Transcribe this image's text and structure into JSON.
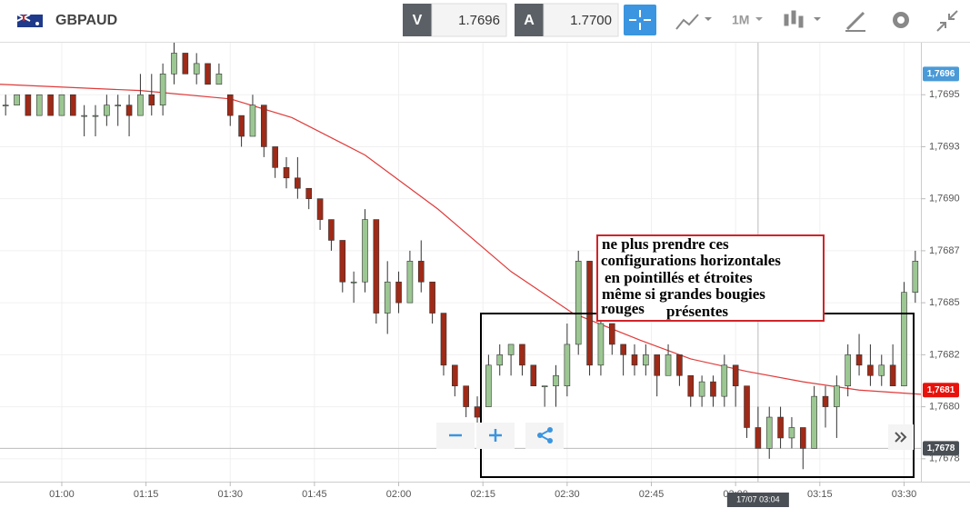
{
  "header": {
    "symbol": "GBPAUD",
    "bid_label": "V",
    "bid": "1.7696",
    "ask_label": "A",
    "ask": "1.7700",
    "timeframe": "1M"
  },
  "annotation": {
    "lines": [
      "ne plus prendre ces",
      "configurations horizontales",
      "en pointillés et étroites",
      "même si grandes bougies",
      "rouges",
      "présentes"
    ]
  },
  "chart_data": {
    "type": "candlestick",
    "x": [
      "00:50",
      "00:52",
      "00:54",
      "00:56",
      "00:58",
      "01:00",
      "01:02",
      "01:04",
      "01:06",
      "01:08",
      "01:10",
      "01:12",
      "01:14",
      "01:16",
      "01:18",
      "01:20",
      "01:22",
      "01:24",
      "01:26",
      "01:28",
      "01:30",
      "01:32",
      "01:34",
      "01:36",
      "01:38",
      "01:40",
      "01:42",
      "01:44",
      "01:46",
      "01:48",
      "01:50",
      "01:52",
      "01:54",
      "01:56",
      "01:58",
      "02:00",
      "02:02",
      "02:04",
      "02:06",
      "02:08",
      "02:10",
      "02:12",
      "02:14",
      "02:16",
      "02:18",
      "02:20",
      "02:22",
      "02:24",
      "02:26",
      "02:28",
      "02:30",
      "02:32",
      "02:34",
      "02:36",
      "02:38",
      "02:40",
      "02:42",
      "02:44",
      "02:46",
      "02:48",
      "02:50",
      "02:52",
      "02:54",
      "02:56",
      "02:58",
      "03:00",
      "03:02",
      "03:04",
      "03:06",
      "03:08",
      "03:10",
      "03:12",
      "03:14",
      "03:16",
      "03:18",
      "03:20",
      "03:22",
      "03:24",
      "03:26",
      "03:28",
      "03:30",
      "03:32"
    ],
    "open": [
      1.76945,
      1.76945,
      1.7695,
      1.7694,
      1.7695,
      1.7694,
      1.7695,
      1.7694,
      1.7694,
      1.7694,
      1.76945,
      1.76945,
      1.7694,
      1.7695,
      1.76945,
      1.7696,
      1.7697,
      1.7696,
      1.76965,
      1.76955,
      1.7695,
      1.7694,
      1.7693,
      1.76945,
      1.76925,
      1.76915,
      1.7691,
      1.76905,
      1.769,
      1.7689,
      1.7688,
      1.7686,
      1.7686,
      1.7689,
      1.76845,
      1.7686,
      1.7685,
      1.7687,
      1.7686,
      1.76845,
      1.7682,
      1.7681,
      1.768,
      1.768,
      1.7682,
      1.76825,
      1.7683,
      1.7682,
      1.7681,
      1.7681,
      1.7681,
      1.7683,
      1.7687,
      1.7682,
      1.7684,
      1.7683,
      1.76825,
      1.7682,
      1.76825,
      1.76815,
      1.76825,
      1.76815,
      1.76805,
      1.76812,
      1.76805,
      1.7682,
      1.7681,
      1.7679,
      1.7678,
      1.76795,
      1.76785,
      1.7679,
      1.7678,
      1.76805,
      1.768,
      1.7681,
      1.76825,
      1.7682,
      1.76815,
      1.7682,
      1.7681,
      1.76855
    ],
    "high": [
      1.7695,
      1.7695,
      1.7695,
      1.7695,
      1.7695,
      1.7695,
      1.7695,
      1.76945,
      1.76945,
      1.7695,
      1.7695,
      1.7695,
      1.7696,
      1.7696,
      1.76965,
      1.76975,
      1.7697,
      1.7697,
      1.76965,
      1.76965,
      1.7695,
      1.7694,
      1.7695,
      1.76945,
      1.76925,
      1.7692,
      1.7692,
      1.76905,
      1.769,
      1.7689,
      1.7688,
      1.76865,
      1.76895,
      1.7689,
      1.7687,
      1.76865,
      1.76875,
      1.7688,
      1.7686,
      1.76845,
      1.7682,
      1.7681,
      1.76805,
      1.76825,
      1.7683,
      1.7683,
      1.7683,
      1.7682,
      1.7681,
      1.7682,
      1.7684,
      1.76875,
      1.7687,
      1.76845,
      1.7684,
      1.7683,
      1.7683,
      1.7683,
      1.76825,
      1.7683,
      1.76825,
      1.76815,
      1.76815,
      1.76815,
      1.76825,
      1.7682,
      1.7681,
      1.768,
      1.768,
      1.768,
      1.76795,
      1.7679,
      1.7681,
      1.7681,
      1.76815,
      1.7683,
      1.76835,
      1.7683,
      1.76825,
      1.7683,
      1.7686,
      1.76875
    ],
    "low": [
      1.7694,
      1.76945,
      1.7694,
      1.7694,
      1.7694,
      1.7694,
      1.7694,
      1.7693,
      1.7693,
      1.76935,
      1.76935,
      1.7693,
      1.7694,
      1.7694,
      1.7694,
      1.76955,
      1.7696,
      1.76955,
      1.76955,
      1.76955,
      1.76935,
      1.76925,
      1.7693,
      1.7692,
      1.7691,
      1.76905,
      1.769,
      1.76895,
      1.76885,
      1.76875,
      1.76855,
      1.7685,
      1.76855,
      1.7684,
      1.76835,
      1.76845,
      1.7685,
      1.76855,
      1.7684,
      1.76815,
      1.76805,
      1.76795,
      1.7679,
      1.768,
      1.76815,
      1.76815,
      1.76815,
      1.7681,
      1.768,
      1.768,
      1.76805,
      1.76825,
      1.76815,
      1.76815,
      1.76825,
      1.76815,
      1.76815,
      1.76815,
      1.76805,
      1.76815,
      1.7681,
      1.768,
      1.768,
      1.768,
      1.768,
      1.768,
      1.76785,
      1.7678,
      1.76775,
      1.7678,
      1.7678,
      1.7677,
      1.7678,
      1.7679,
      1.76785,
      1.76805,
      1.76815,
      1.7681,
      1.7681,
      1.7681,
      1.7681,
      1.7685
    ],
    "close": [
      1.76945,
      1.7695,
      1.7694,
      1.7695,
      1.7694,
      1.7695,
      1.7694,
      1.7694,
      1.7694,
      1.76945,
      1.76945,
      1.7694,
      1.7695,
      1.76945,
      1.7696,
      1.7697,
      1.7696,
      1.76965,
      1.76955,
      1.7696,
      1.7694,
      1.7693,
      1.76945,
      1.76925,
      1.76915,
      1.7691,
      1.76905,
      1.769,
      1.7689,
      1.7688,
      1.7686,
      1.7686,
      1.7689,
      1.76845,
      1.7686,
      1.7685,
      1.7687,
      1.7686,
      1.76845,
      1.7682,
      1.7681,
      1.768,
      1.76795,
      1.7682,
      1.76825,
      1.7683,
      1.7682,
      1.7681,
      1.7681,
      1.76815,
      1.7683,
      1.7687,
      1.7682,
      1.7684,
      1.7683,
      1.76825,
      1.7682,
      1.76825,
      1.76815,
      1.76825,
      1.76815,
      1.76805,
      1.76812,
      1.76805,
      1.7682,
      1.7681,
      1.7679,
      1.7678,
      1.76795,
      1.76785,
      1.7679,
      1.7678,
      1.76805,
      1.768,
      1.7681,
      1.76825,
      1.7682,
      1.76815,
      1.7682,
      1.7681,
      1.76855,
      1.7687
    ],
    "up_color": "#9cc793",
    "down_color": "#9e2a17",
    "moving_average": {
      "color": "#e03a3a",
      "x": [
        "00:49",
        "01:14",
        "01:30",
        "01:41",
        "01:54",
        "02:07",
        "02:20",
        "02:31",
        "02:43",
        "02:52",
        "03:02",
        "03:12",
        "03:22",
        "03:33"
      ],
      "values": [
        1.76955,
        1.76952,
        1.76948,
        1.76939,
        1.76921,
        1.76895,
        1.76865,
        1.76845,
        1.76832,
        1.76823,
        1.76817,
        1.76812,
        1.76808,
        1.76806
      ]
    },
    "xlim": [
      "00:49",
      "03:33"
    ],
    "ylim": [
      1.76764,
      1.76975
    ],
    "xticks": [
      "01:00",
      "01:15",
      "01:30",
      "01:45",
      "02:00",
      "02:15",
      "02:30",
      "02:45",
      "03:00",
      "03:15",
      "03:30"
    ],
    "yticks": [
      {
        "value": 1.7695,
        "label": "1,7695"
      },
      {
        "value": 1.76925,
        "label": "1,7693"
      },
      {
        "value": 1.769,
        "label": "1,7690"
      },
      {
        "value": 1.76875,
        "label": "1,7687"
      },
      {
        "value": 1.7685,
        "label": "1,7685"
      },
      {
        "value": 1.76825,
        "label": "1,7682"
      },
      {
        "value": 1.768,
        "label": "1,7680"
      },
      {
        "value": 1.76775,
        "label": "1,7678"
      }
    ],
    "price_labels": [
      {
        "value": 1.7696,
        "label": "1,7696",
        "color": "#4a9ad8"
      },
      {
        "value": 1.76808,
        "label": "1,7681",
        "color": "#e8120c"
      },
      {
        "value": 1.7678,
        "label": "1,7678",
        "color": "#4a4f55"
      }
    ],
    "crosshair": {
      "x": "03:04",
      "label": "17/07 03:04",
      "y": 1.7678
    }
  }
}
